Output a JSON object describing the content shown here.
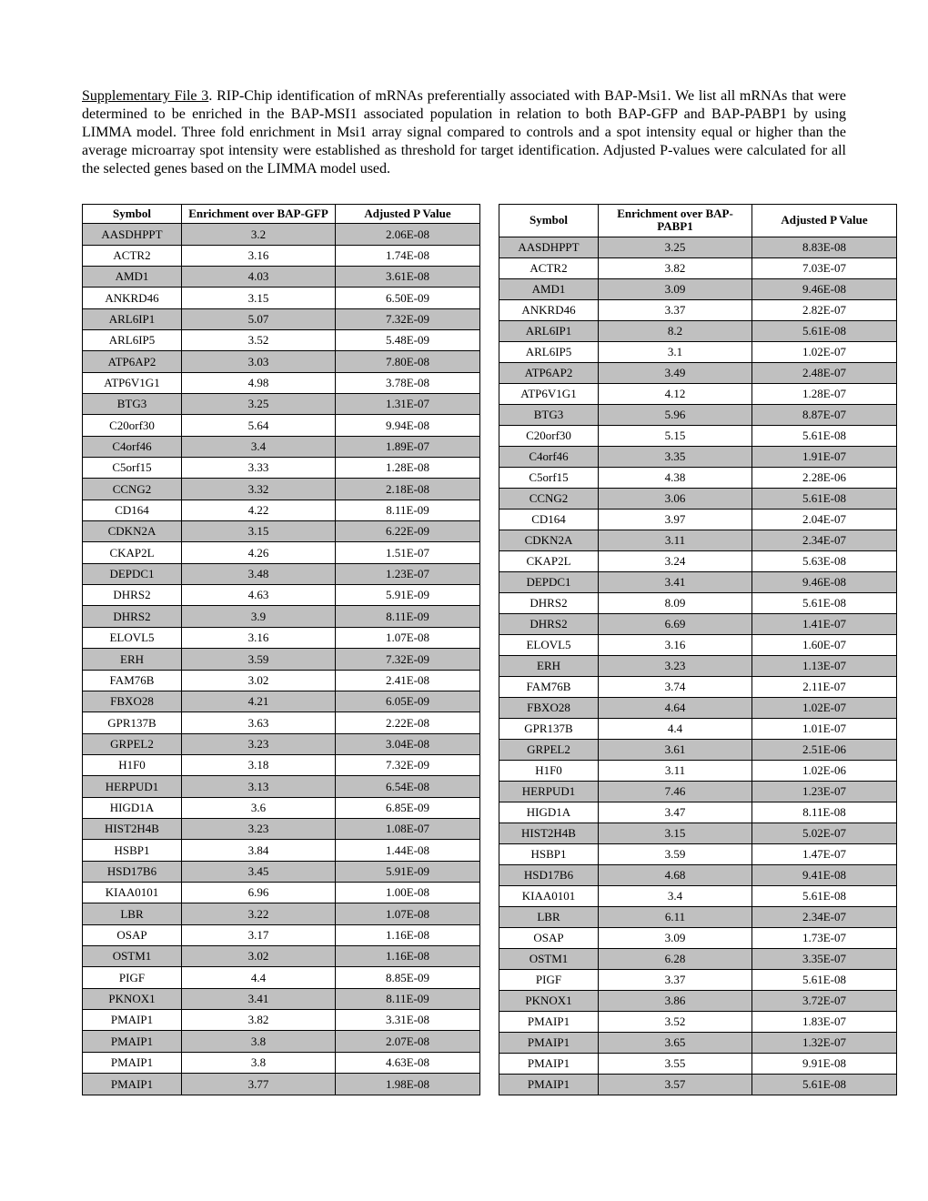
{
  "caption": {
    "lead": "Supplementary File 3",
    "body": ". RIP-Chip identification of mRNAs preferentially associated with BAP-Msi1. We list all mRNAs that were determined to be enriched in the BAP-MSI1 associated population in relation to both BAP-GFP and BAP-PABP1 by using LIMMA model. Three fold enrichment in Msi1 array signal compared to controls and a spot intensity equal or higher than the average microarray spot intensity were established as threshold for target identification. Adjusted P-values were calculated for all the selected genes based on the LIMMA model used."
  },
  "headers": {
    "symbol": "Symbol",
    "enrich_gfp": "Enrichment over BAP-GFP",
    "enrich_pabp": "Enrichment over BAP-PABP1",
    "pvalue": "Adjusted P Value"
  },
  "left": [
    {
      "s": "AASDHPPT",
      "e": "3.2",
      "p": "2.06E-08",
      "sh": true
    },
    {
      "s": "ACTR2",
      "e": "3.16",
      "p": "1.74E-08",
      "sh": false
    },
    {
      "s": "AMD1",
      "e": "4.03",
      "p": "3.61E-08",
      "sh": true
    },
    {
      "s": "ANKRD46",
      "e": "3.15",
      "p": "6.50E-09",
      "sh": false
    },
    {
      "s": "ARL6IP1",
      "e": "5.07",
      "p": "7.32E-09",
      "sh": true
    },
    {
      "s": "ARL6IP5",
      "e": "3.52",
      "p": "5.48E-09",
      "sh": false
    },
    {
      "s": "ATP6AP2",
      "e": "3.03",
      "p": "7.80E-08",
      "sh": true
    },
    {
      "s": "ATP6V1G1",
      "e": "4.98",
      "p": "3.78E-08",
      "sh": false
    },
    {
      "s": "BTG3",
      "e": "3.25",
      "p": "1.31E-07",
      "sh": true
    },
    {
      "s": "C20orf30",
      "e": "5.64",
      "p": "9.94E-08",
      "sh": false
    },
    {
      "s": "C4orf46",
      "e": "3.4",
      "p": "1.89E-07",
      "sh": true
    },
    {
      "s": "C5orf15",
      "e": "3.33",
      "p": "1.28E-08",
      "sh": false
    },
    {
      "s": "CCNG2",
      "e": "3.32",
      "p": "2.18E-08",
      "sh": true
    },
    {
      "s": "CD164",
      "e": "4.22",
      "p": "8.11E-09",
      "sh": false
    },
    {
      "s": "CDKN2A",
      "e": "3.15",
      "p": "6.22E-09",
      "sh": true
    },
    {
      "s": "CKAP2L",
      "e": "4.26",
      "p": "1.51E-07",
      "sh": false
    },
    {
      "s": "DEPDC1",
      "e": "3.48",
      "p": "1.23E-07",
      "sh": true
    },
    {
      "s": "DHRS2",
      "e": "4.63",
      "p": "5.91E-09",
      "sh": false
    },
    {
      "s": "DHRS2",
      "e": "3.9",
      "p": "8.11E-09",
      "sh": true
    },
    {
      "s": "ELOVL5",
      "e": "3.16",
      "p": "1.07E-08",
      "sh": false
    },
    {
      "s": "ERH",
      "e": "3.59",
      "p": "7.32E-09",
      "sh": true
    },
    {
      "s": "FAM76B",
      "e": "3.02",
      "p": "2.41E-08",
      "sh": false
    },
    {
      "s": "FBXO28",
      "e": "4.21",
      "p": "6.05E-09",
      "sh": true
    },
    {
      "s": "GPR137B",
      "e": "3.63",
      "p": "2.22E-08",
      "sh": false
    },
    {
      "s": "GRPEL2",
      "e": "3.23",
      "p": "3.04E-08",
      "sh": true
    },
    {
      "s": "H1F0",
      "e": "3.18",
      "p": "7.32E-09",
      "sh": false
    },
    {
      "s": "HERPUD1",
      "e": "3.13",
      "p": "6.54E-08",
      "sh": true
    },
    {
      "s": "HIGD1A",
      "e": "3.6",
      "p": "6.85E-09",
      "sh": false
    },
    {
      "s": "HIST2H4B",
      "e": "3.23",
      "p": "1.08E-07",
      "sh": true
    },
    {
      "s": "HSBP1",
      "e": "3.84",
      "p": "1.44E-08",
      "sh": false
    },
    {
      "s": "HSD17B6",
      "e": "3.45",
      "p": "5.91E-09",
      "sh": true
    },
    {
      "s": "KIAA0101",
      "e": "6.96",
      "p": "1.00E-08",
      "sh": false
    },
    {
      "s": "LBR",
      "e": "3.22",
      "p": "1.07E-08",
      "sh": true
    },
    {
      "s": "OSAP",
      "e": "3.17",
      "p": "1.16E-08",
      "sh": false
    },
    {
      "s": "OSTM1",
      "e": "3.02",
      "p": "1.16E-08",
      "sh": true
    },
    {
      "s": "PIGF",
      "e": "4.4",
      "p": "8.85E-09",
      "sh": false
    },
    {
      "s": "PKNOX1",
      "e": "3.41",
      "p": "8.11E-09",
      "sh": true
    },
    {
      "s": "PMAIP1",
      "e": "3.82",
      "p": "3.31E-08",
      "sh": false
    },
    {
      "s": "PMAIP1",
      "e": "3.8",
      "p": "2.07E-08",
      "sh": true
    },
    {
      "s": "PMAIP1",
      "e": "3.8",
      "p": "4.63E-08",
      "sh": false
    },
    {
      "s": "PMAIP1",
      "e": "3.77",
      "p": "1.98E-08",
      "sh": true
    }
  ],
  "right": [
    {
      "s": "AASDHPPT",
      "e": "3.25",
      "p": "8.83E-08",
      "sh": true
    },
    {
      "s": "ACTR2",
      "e": "3.82",
      "p": "7.03E-07",
      "sh": false
    },
    {
      "s": "AMD1",
      "e": "3.09",
      "p": "9.46E-08",
      "sh": true
    },
    {
      "s": "ANKRD46",
      "e": "3.37",
      "p": "2.82E-07",
      "sh": false
    },
    {
      "s": "ARL6IP1",
      "e": "8.2",
      "p": "5.61E-08",
      "sh": true
    },
    {
      "s": "ARL6IP5",
      "e": "3.1",
      "p": "1.02E-07",
      "sh": false
    },
    {
      "s": "ATP6AP2",
      "e": "3.49",
      "p": "2.48E-07",
      "sh": true
    },
    {
      "s": "ATP6V1G1",
      "e": "4.12",
      "p": "1.28E-07",
      "sh": false
    },
    {
      "s": "BTG3",
      "e": "5.96",
      "p": "8.87E-07",
      "sh": true
    },
    {
      "s": "C20orf30",
      "e": "5.15",
      "p": "5.61E-08",
      "sh": false
    },
    {
      "s": "C4orf46",
      "e": "3.35",
      "p": "1.91E-07",
      "sh": true
    },
    {
      "s": "C5orf15",
      "e": "4.38",
      "p": "2.28E-06",
      "sh": false
    },
    {
      "s": "CCNG2",
      "e": "3.06",
      "p": "5.61E-08",
      "sh": true
    },
    {
      "s": "CD164",
      "e": "3.97",
      "p": "2.04E-07",
      "sh": false
    },
    {
      "s": "CDKN2A",
      "e": "3.11",
      "p": "2.34E-07",
      "sh": true
    },
    {
      "s": "CKAP2L",
      "e": "3.24",
      "p": "5.63E-08",
      "sh": false
    },
    {
      "s": "DEPDC1",
      "e": "3.41",
      "p": "9.46E-08",
      "sh": true
    },
    {
      "s": "DHRS2",
      "e": "8.09",
      "p": "5.61E-08",
      "sh": false
    },
    {
      "s": "DHRS2",
      "e": "6.69",
      "p": "1.41E-07",
      "sh": true
    },
    {
      "s": "ELOVL5",
      "e": "3.16",
      "p": "1.60E-07",
      "sh": false
    },
    {
      "s": "ERH",
      "e": "3.23",
      "p": "1.13E-07",
      "sh": true
    },
    {
      "s": "FAM76B",
      "e": "3.74",
      "p": "2.11E-07",
      "sh": false
    },
    {
      "s": "FBXO28",
      "e": "4.64",
      "p": "1.02E-07",
      "sh": true
    },
    {
      "s": "GPR137B",
      "e": "4.4",
      "p": "1.01E-07",
      "sh": false
    },
    {
      "s": "GRPEL2",
      "e": "3.61",
      "p": "2.51E-06",
      "sh": true
    },
    {
      "s": "H1F0",
      "e": "3.11",
      "p": "1.02E-06",
      "sh": false
    },
    {
      "s": "HERPUD1",
      "e": "7.46",
      "p": "1.23E-07",
      "sh": true
    },
    {
      "s": "HIGD1A",
      "e": "3.47",
      "p": "8.11E-08",
      "sh": false
    },
    {
      "s": "HIST2H4B",
      "e": "3.15",
      "p": "5.02E-07",
      "sh": true
    },
    {
      "s": "HSBP1",
      "e": "3.59",
      "p": "1.47E-07",
      "sh": false
    },
    {
      "s": "HSD17B6",
      "e": "4.68",
      "p": "9.41E-08",
      "sh": true
    },
    {
      "s": "KIAA0101",
      "e": "3.4",
      "p": "5.61E-08",
      "sh": false
    },
    {
      "s": "LBR",
      "e": "6.11",
      "p": "2.34E-07",
      "sh": true
    },
    {
      "s": "OSAP",
      "e": "3.09",
      "p": "1.73E-07",
      "sh": false
    },
    {
      "s": "OSTM1",
      "e": "6.28",
      "p": "3.35E-07",
      "sh": true
    },
    {
      "s": "PIGF",
      "e": "3.37",
      "p": "5.61E-08",
      "sh": false
    },
    {
      "s": "PKNOX1",
      "e": "3.86",
      "p": "3.72E-07",
      "sh": true
    },
    {
      "s": "PMAIP1",
      "e": "3.52",
      "p": "1.83E-07",
      "sh": false
    },
    {
      "s": "PMAIP1",
      "e": "3.65",
      "p": "1.32E-07",
      "sh": true
    },
    {
      "s": "PMAIP1",
      "e": "3.55",
      "p": "9.91E-08",
      "sh": false
    },
    {
      "s": "PMAIP1",
      "e": "3.57",
      "p": "5.61E-08",
      "sh": true
    }
  ]
}
